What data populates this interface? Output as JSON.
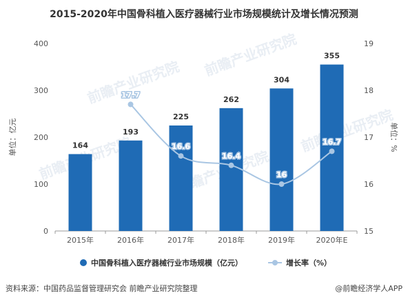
{
  "chart_data": {
    "type": "bar",
    "title": "2015-2020年中国骨科植入医疗器械行业市场规模统计及增长情况预测",
    "categories": [
      "2015年",
      "2016年",
      "2017年",
      "2018年",
      "2019年",
      "2020年E"
    ],
    "series": [
      {
        "name": "中国骨科植入医疗器械行业市场规模（亿元）",
        "type": "bar",
        "values": [
          164,
          193,
          225,
          262,
          304,
          355
        ],
        "color": "#1f6bb5",
        "axis": "left"
      },
      {
        "name": "增长率（%）",
        "type": "line",
        "values": [
          null,
          17.7,
          16.6,
          16.4,
          16,
          16.7
        ],
        "color": "#a9c6e3",
        "axis": "right"
      }
    ],
    "ylabel": "单位：亿元",
    "ylim": [
      0,
      400
    ],
    "yticks": [
      0,
      100,
      200,
      300,
      400
    ],
    "y2label": "单位：%",
    "y2lim": [
      15,
      19
    ],
    "y2ticks": [
      15,
      16,
      17,
      18,
      19
    ],
    "legend": "bottom",
    "grid": false
  },
  "source": "资料来源：中国药品监督管理研究会 前瞻产业研究院整理",
  "brand": "@前瞻经济学人APP",
  "watermark": "前瞻产业研究院"
}
